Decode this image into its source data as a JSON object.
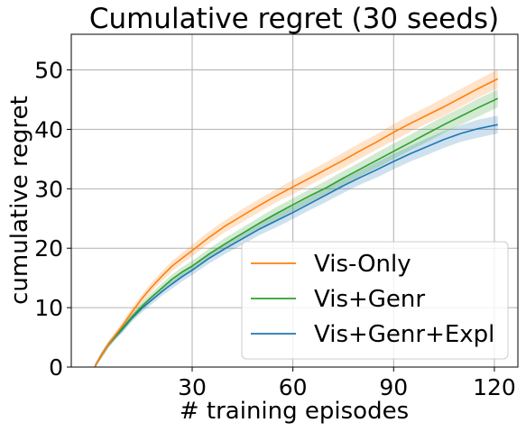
{
  "chart_data": {
    "type": "line",
    "title": "Cumulative regret (30 seeds)",
    "xlabel": "# training episodes",
    "ylabel": "cumulative regret",
    "xlim": [
      -6,
      127
    ],
    "ylim": [
      0,
      56
    ],
    "xticks": [
      30,
      60,
      90,
      120
    ],
    "yticks": [
      0,
      10,
      20,
      30,
      40,
      50
    ],
    "grid": true,
    "legend_position": "lower-right",
    "x": [
      1,
      3,
      5,
      7,
      9,
      12,
      15,
      18,
      21,
      24,
      27,
      30,
      35,
      40,
      45,
      50,
      55,
      60,
      65,
      70,
      75,
      80,
      85,
      90,
      95,
      100,
      105,
      110,
      115,
      121
    ],
    "series": [
      {
        "name": "Vis-Only",
        "color": "#ff7f0e",
        "values": [
          0.0,
          2.0,
          3.8,
          5.3,
          6.8,
          9.2,
          11.5,
          13.5,
          15.3,
          17.0,
          18.3,
          19.6,
          21.8,
          23.8,
          25.5,
          27.2,
          28.8,
          30.3,
          31.8,
          33.3,
          34.8,
          36.4,
          37.9,
          39.5,
          41.0,
          42.4,
          43.8,
          45.3,
          46.8,
          48.5
        ],
        "band": [
          0.5,
          0.5,
          0.5,
          0.6,
          0.6,
          0.7,
          0.7,
          0.8,
          0.8,
          0.9,
          0.9,
          1.0,
          1.0,
          1.0,
          1.1,
          1.1,
          1.1,
          1.2,
          1.2,
          1.2,
          1.3,
          1.3,
          1.3,
          1.4,
          1.4,
          1.4,
          1.5,
          1.5,
          1.5,
          1.6
        ]
      },
      {
        "name": "Vis+Genr",
        "color": "#2ca02c",
        "values": [
          0.0,
          2.0,
          3.7,
          5.1,
          6.4,
          8.4,
          10.2,
          11.8,
          13.3,
          14.8,
          16.0,
          17.0,
          19.0,
          20.8,
          22.5,
          24.2,
          25.8,
          27.3,
          28.8,
          30.2,
          31.8,
          33.3,
          34.8,
          36.3,
          37.8,
          39.3,
          40.8,
          42.2,
          43.6,
          45.2
        ],
        "band": [
          0.5,
          0.5,
          0.5,
          0.5,
          0.6,
          0.6,
          0.7,
          0.7,
          0.8,
          0.8,
          0.8,
          0.9,
          0.9,
          1.0,
          1.0,
          1.0,
          1.1,
          1.1,
          1.1,
          1.2,
          1.2,
          1.2,
          1.3,
          1.3,
          1.3,
          1.4,
          1.4,
          1.4,
          1.5,
          1.5
        ]
      },
      {
        "name": "Vis+Genr+Expl",
        "color": "#1f77b4",
        "values": [
          0.0,
          2.0,
          3.7,
          5.0,
          6.2,
          8.2,
          9.9,
          11.3,
          12.7,
          14.0,
          15.2,
          16.3,
          18.3,
          20.0,
          21.6,
          23.2,
          24.6,
          26.0,
          27.5,
          29.0,
          30.5,
          31.9,
          33.2,
          34.6,
          35.9,
          37.1,
          38.3,
          39.3,
          40.1,
          40.8
        ],
        "band": [
          0.5,
          0.5,
          0.5,
          0.5,
          0.6,
          0.6,
          0.7,
          0.7,
          0.7,
          0.8,
          0.8,
          0.8,
          0.9,
          0.9,
          1.0,
          1.0,
          1.1,
          1.1,
          1.1,
          1.2,
          1.2,
          1.2,
          1.3,
          1.3,
          1.3,
          1.4,
          1.4,
          1.4,
          1.5,
          1.5
        ]
      }
    ]
  }
}
